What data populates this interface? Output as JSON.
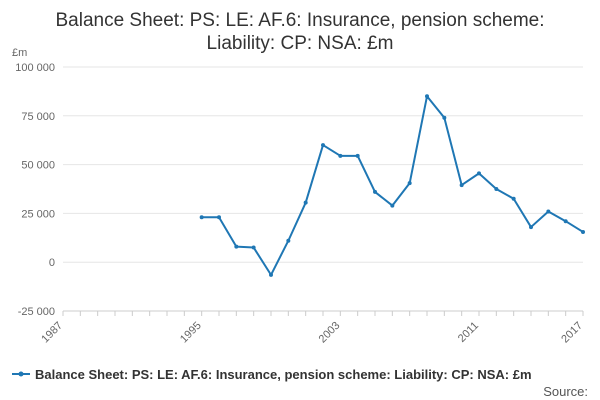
{
  "chart_data": {
    "type": "line",
    "title_lines": [
      "Balance Sheet: PS: LE: AF.6: Insurance, pension scheme:",
      "Liability: CP: NSA: £m"
    ],
    "y_unit": "£m",
    "xlim": [
      1987,
      2017
    ],
    "ylim": [
      -25000,
      100000
    ],
    "x_ticks": [
      1987,
      1995,
      2003,
      2011,
      2017
    ],
    "y_ticks": [
      {
        "value": 100000,
        "label": "100 000"
      },
      {
        "value": 75000,
        "label": "75 000"
      },
      {
        "value": 50000,
        "label": "50 000"
      },
      {
        "value": 25000,
        "label": "25 000"
      },
      {
        "value": 0,
        "label": "0"
      },
      {
        "value": -25000,
        "label": "-25 000"
      }
    ],
    "grid": true,
    "legend_position": "bottom",
    "series": [
      {
        "name": "Balance Sheet: PS: LE: AF.6: Insurance, pension scheme: Liability: CP: NSA: £m",
        "color": "#1f77b4",
        "x": [
          1995,
          1996,
          1997,
          1998,
          1999,
          2000,
          2001,
          2002,
          2003,
          2004,
          2005,
          2006,
          2007,
          2008,
          2009,
          2010,
          2011,
          2012,
          2013,
          2014,
          2015,
          2016,
          2017
        ],
        "y": [
          23000,
          23000,
          8000,
          7500,
          -6500,
          11000,
          30500,
          60000,
          54500,
          54500,
          36000,
          29000,
          40500,
          85000,
          74000,
          39500,
          45500,
          37500,
          32500,
          18000,
          26000,
          21000,
          15500
        ]
      }
    ]
  },
  "source_label": "Source:"
}
